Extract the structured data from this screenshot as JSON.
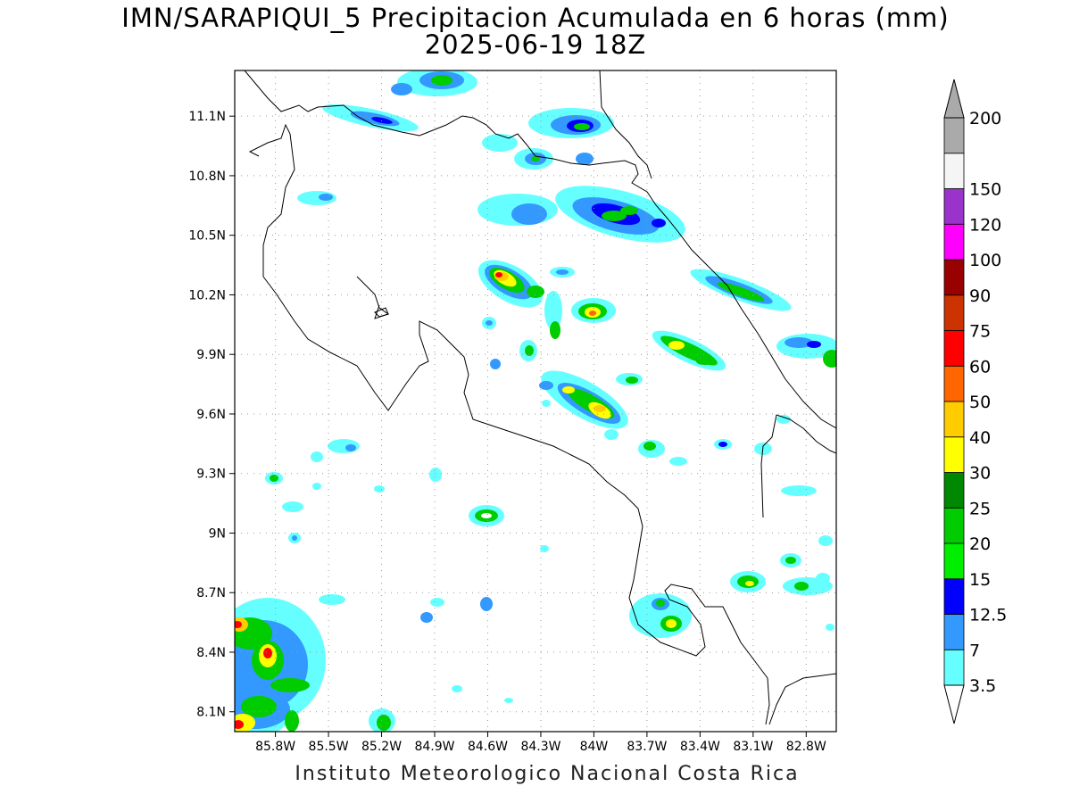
{
  "title": {
    "line1": "IMN/SARAPIQUI_5 Precipitacion Acumulada en 6 horas (mm)",
    "line2": "2025-06-19 18Z"
  },
  "footer": "Instituto Meteorologico Nacional Costa Rica",
  "map": {
    "lat_labels": [
      "11.1N",
      "10.8N",
      "10.5N",
      "10.2N",
      "9.9N",
      "9.6N",
      "9.3N",
      "9N",
      "8.7N",
      "8.4N",
      "8.1N"
    ],
    "lon_labels": [
      "85.8W",
      "85.5W",
      "85.2W",
      "84.9W",
      "84.6W",
      "84.3W",
      "84W",
      "83.7W",
      "83.4W",
      "83.1W",
      "82.8W"
    ],
    "lat_values": [
      11.1,
      10.8,
      10.5,
      10.2,
      9.9,
      9.6,
      9.3,
      9.0,
      8.7,
      8.4,
      8.1
    ],
    "lon_values": [
      -85.8,
      -85.5,
      -85.2,
      -84.9,
      -84.6,
      -84.3,
      -84.0,
      -83.7,
      -83.4,
      -83.1,
      -82.8
    ]
  },
  "colorbar": {
    "labels": [
      "3.5",
      "7",
      "12.5",
      "15",
      "20",
      "25",
      "30",
      "40",
      "50",
      "60",
      "75",
      "90",
      "100",
      "120",
      "150",
      "200"
    ],
    "colors": [
      "#66ffff",
      "#3399ff",
      "#0000ff",
      "#00ee00",
      "#00cc00",
      "#008800",
      "#ffff00",
      "#ffcc00",
      "#ff6600",
      "#ff0000",
      "#cc3300",
      "#990000",
      "#ff00ff",
      "#9933cc",
      "#f5f5f5",
      "#aaaaaa"
    ],
    "top_arrow_color": "#aaaaaa",
    "bottom_arrow_color": "#ffffff"
  },
  "precip_cells": [
    {
      "lon": -84.47,
      "lat": 10.24,
      "max_mm": 60
    },
    {
      "lon": -84.0,
      "lat": 10.1,
      "max_mm": 50
    },
    {
      "lon": -83.95,
      "lat": 9.61,
      "max_mm": 40
    },
    {
      "lon": -84.05,
      "lat": 9.7,
      "max_mm": 40
    },
    {
      "lon": -83.38,
      "lat": 9.92,
      "max_mm": 40
    },
    {
      "lon": -83.85,
      "lat": 10.62,
      "max_mm": 30
    },
    {
      "lon": -83.05,
      "lat": 10.2,
      "max_mm": 20
    },
    {
      "lon": -84.0,
      "lat": 11.05,
      "max_mm": 20
    },
    {
      "lon": -84.55,
      "lat": 9.07,
      "max_mm": 25
    },
    {
      "lon": -83.4,
      "lat": 8.54,
      "max_mm": 40
    },
    {
      "lon": -85.7,
      "lat": 8.38,
      "max_mm": 60
    },
    {
      "lon": -85.98,
      "lat": 8.08,
      "max_mm": 60
    },
    {
      "lon": -85.98,
      "lat": 8.52,
      "max_mm": 60
    },
    {
      "lon": -84.72,
      "lat": 11.25,
      "max_mm": 20
    },
    {
      "lon": -85.2,
      "lat": 11.06,
      "max_mm": 15
    }
  ]
}
